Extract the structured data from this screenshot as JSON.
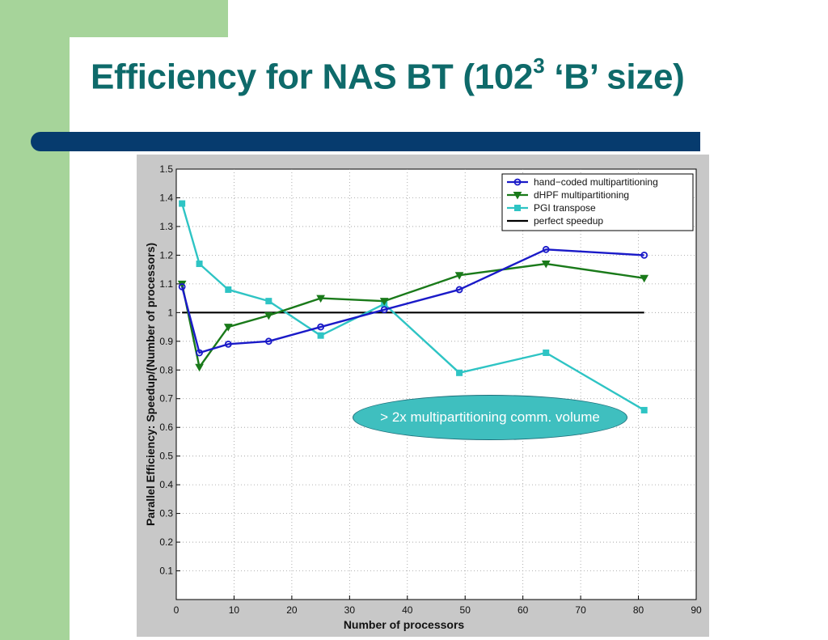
{
  "slide": {
    "title_main": "Efficiency for NAS BT (102",
    "title_sup": "3",
    "title_tail": " ‘B’ size)"
  },
  "annotation": {
    "text": "> 2x multipartitioning comm. volume"
  },
  "colors": {
    "side_bar": "#a6d49a",
    "title_text": "#0e6a6a",
    "title_rule": "#063b6e",
    "plot_bg": "#c8c8c8",
    "callout": "#3fbfbf"
  },
  "chart_data": {
    "type": "line",
    "title": "",
    "xlabel": "Number of processors",
    "ylabel": "Parallel Efficiency: Speedup/(Number of processors)",
    "xlim": [
      0,
      90
    ],
    "ylim": [
      0,
      1.5
    ],
    "xticks": [
      0,
      10,
      20,
      30,
      40,
      50,
      60,
      70,
      80,
      90
    ],
    "yticks": [
      0.1,
      0.2,
      0.3,
      0.4,
      0.5,
      0.6,
      0.7,
      0.8,
      0.9,
      1,
      1.1,
      1.2,
      1.3,
      1.4,
      1.5
    ],
    "grid": true,
    "legend_position": "top-right",
    "series": [
      {
        "name": "hand−coded multipartitioning",
        "color": "#1a1ac8",
        "marker": "circle",
        "x": [
          1,
          4,
          9,
          16,
          25,
          36,
          49,
          64,
          81
        ],
        "y": [
          1.09,
          0.86,
          0.89,
          0.9,
          0.95,
          1.01,
          1.08,
          1.22,
          1.2
        ]
      },
      {
        "name": "dHPF multipartitioning",
        "color": "#1a7a1a",
        "marker": "triangle-down",
        "x": [
          1,
          4,
          9,
          16,
          25,
          36,
          49,
          64,
          81
        ],
        "y": [
          1.1,
          0.81,
          0.95,
          0.99,
          1.05,
          1.04,
          1.13,
          1.17,
          1.12
        ]
      },
      {
        "name": "PGI transpose",
        "color": "#2ec4c4",
        "marker": "square",
        "x": [
          1,
          4,
          9,
          16,
          25,
          36,
          49,
          64,
          81
        ],
        "y": [
          1.38,
          1.17,
          1.08,
          1.04,
          0.92,
          1.03,
          0.79,
          0.86,
          0.66
        ]
      },
      {
        "name": "perfect speedup",
        "color": "#000000",
        "marker": "none",
        "x": [
          1,
          81
        ],
        "y": [
          1,
          1
        ]
      }
    ]
  }
}
